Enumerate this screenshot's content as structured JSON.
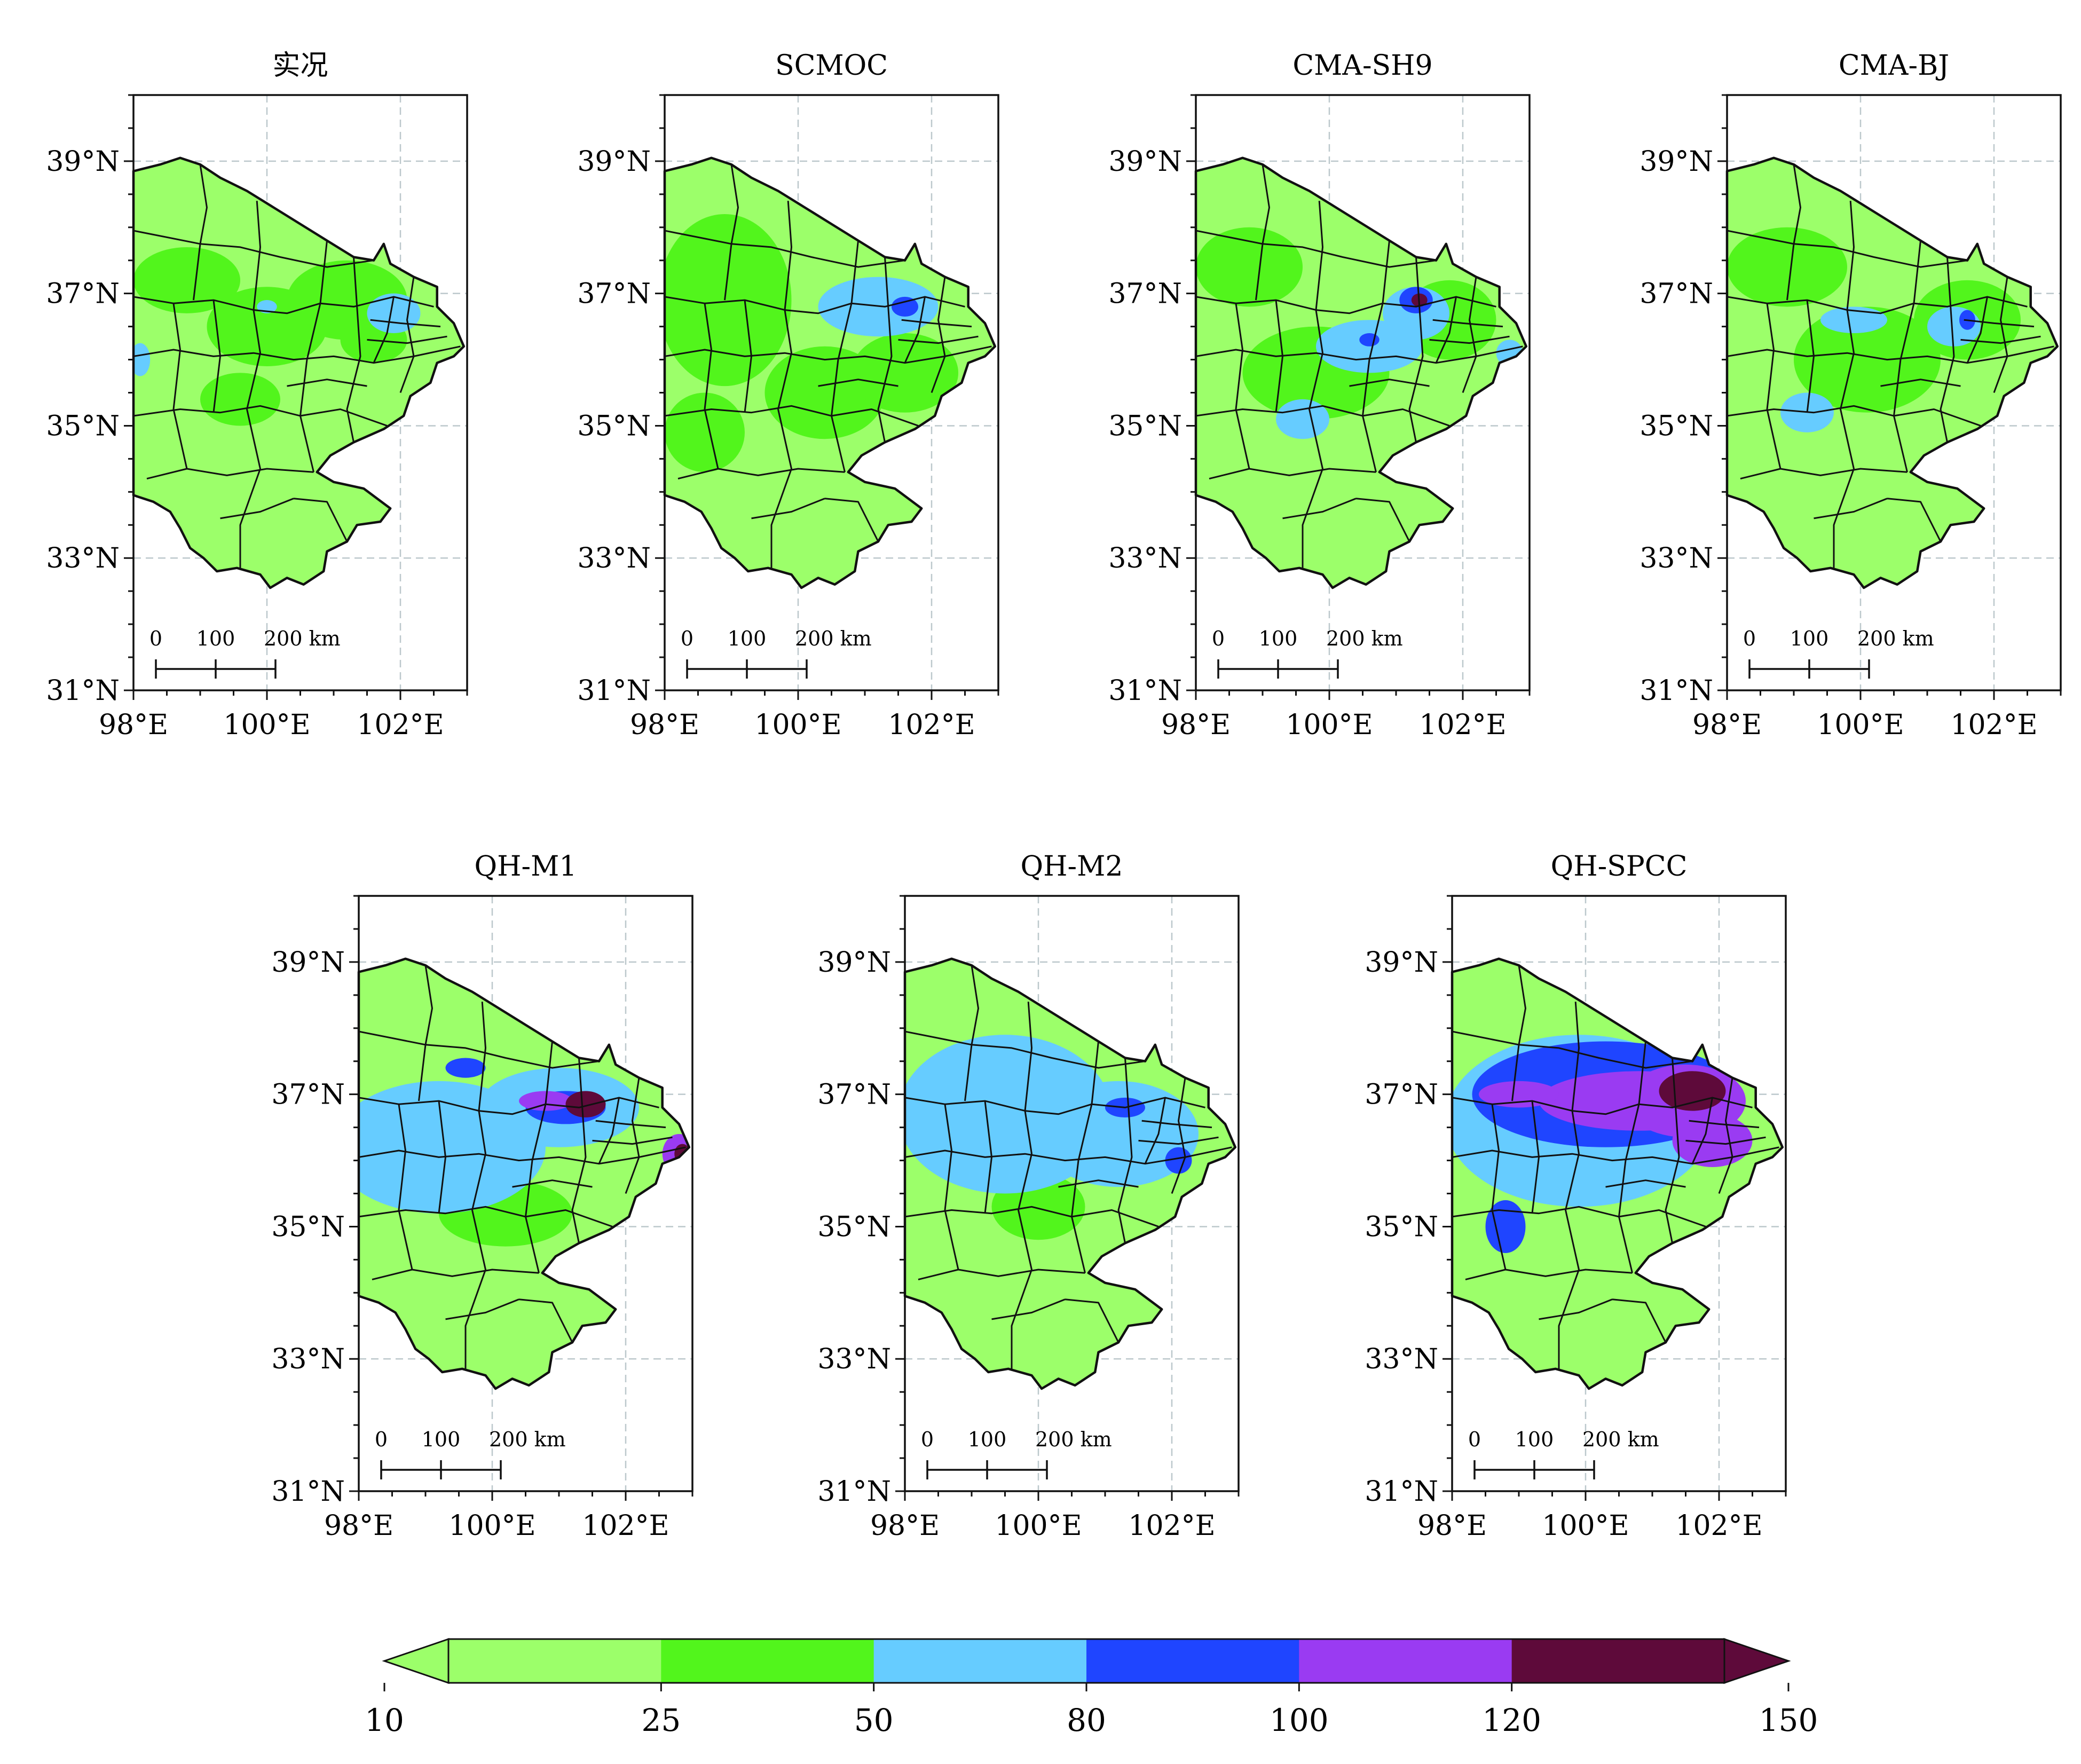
{
  "units_note": "",
  "axis": {
    "lat_ticks": [
      "31°N",
      "33°N",
      "35°N",
      "37°N",
      "39°N"
    ],
    "lon_ticks": [
      "98°E",
      "100°E",
      "102°E"
    ],
    "lat_values": [
      31,
      33,
      35,
      37,
      39
    ],
    "lon_values": [
      98,
      100,
      102
    ],
    "lat_range": [
      31,
      40
    ],
    "lon_range": [
      98,
      103
    ],
    "grid": true
  },
  "scale_bar": {
    "labels": [
      "0",
      "100",
      "200 km"
    ],
    "values_km": [
      0,
      100,
      200
    ]
  },
  "panels": [
    {
      "title": "实况",
      "levels": [
        0.55,
        0.2,
        0.06,
        0.005,
        0,
        0
      ]
    },
    {
      "title": "SCMOC",
      "levels": [
        0.4,
        0.45,
        0.12,
        0.01,
        0,
        0
      ]
    },
    {
      "title": "CMA-SH9",
      "levels": [
        0.4,
        0.38,
        0.15,
        0.03,
        0.005,
        0.003
      ]
    },
    {
      "title": "CMA-BJ",
      "levels": [
        0.5,
        0.35,
        0.1,
        0.02,
        0,
        0
      ]
    },
    {
      "title": "QH-M1",
      "levels": [
        0.25,
        0.38,
        0.28,
        0.05,
        0.03,
        0.015
      ]
    },
    {
      "title": "QH-M2",
      "levels": [
        0.25,
        0.3,
        0.4,
        0.04,
        0.005,
        0
      ]
    },
    {
      "title": "QH-SPCC",
      "levels": [
        0.15,
        0.12,
        0.28,
        0.25,
        0.14,
        0.06
      ]
    }
  ],
  "colorbar": {
    "ticks": [
      "10",
      "25",
      "50",
      "80",
      "100",
      "120",
      "150"
    ],
    "values": [
      10,
      25,
      50,
      80,
      100,
      120,
      150
    ],
    "colors": [
      "#9cff6a",
      "#52f51c",
      "#66ccff",
      "#1f45ff",
      "#9a3bf2",
      "#5e0a3a"
    ],
    "extend": "both"
  }
}
